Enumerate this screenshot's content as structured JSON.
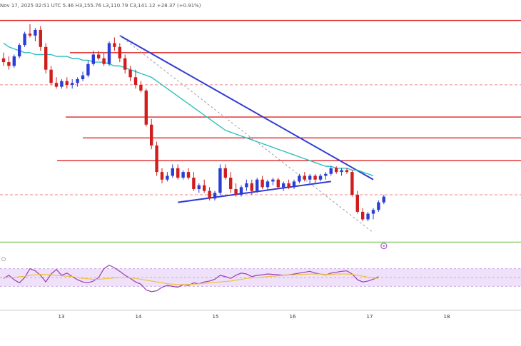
{
  "header": {
    "ohlc_line": "Nov 17, 2025 02:51 UTC    5.46  H3,155.76  L3,110.79  C3,141.12  +28.37 (+0.91%)"
  },
  "colors": {
    "up": "#2a3ed6",
    "down": "#d11d1d",
    "ma": "#2fbfc1",
    "trend": "#2f3cd4",
    "resistance": "#e02424",
    "support": "#7cc95a",
    "rsi_fill": "#e8d4f7",
    "rsi_band": "#c9a6e8",
    "rsi_line": "#9a3db6",
    "rsi_ma": "#f0c030"
  },
  "chart_data": {
    "type": "candlestick",
    "x_axis_ticks": [
      "13",
      "14",
      "15",
      "16",
      "17",
      "18"
    ],
    "y_range": [
      0,
      100
    ],
    "candles": [
      {
        "o": 76,
        "h": 79,
        "l": 72,
        "c": 74
      },
      {
        "o": 74,
        "h": 77,
        "l": 70,
        "c": 72
      },
      {
        "o": 72,
        "h": 78,
        "l": 71,
        "c": 77
      },
      {
        "o": 77,
        "h": 84,
        "l": 76,
        "c": 83
      },
      {
        "o": 83,
        "h": 90,
        "l": 82,
        "c": 89
      },
      {
        "o": 89,
        "h": 94,
        "l": 87,
        "c": 88
      },
      {
        "o": 88,
        "h": 92,
        "l": 85,
        "c": 91
      },
      {
        "o": 91,
        "h": 93,
        "l": 80,
        "c": 82
      },
      {
        "o": 82,
        "h": 84,
        "l": 68,
        "c": 70
      },
      {
        "o": 70,
        "h": 72,
        "l": 62,
        "c": 63
      },
      {
        "o": 63,
        "h": 66,
        "l": 60,
        "c": 61
      },
      {
        "o": 61,
        "h": 65,
        "l": 60,
        "c": 64
      },
      {
        "o": 64,
        "h": 66,
        "l": 60,
        "c": 62
      },
      {
        "o": 62,
        "h": 65,
        "l": 60,
        "c": 63
      },
      {
        "o": 63,
        "h": 66,
        "l": 61,
        "c": 65
      },
      {
        "o": 65,
        "h": 69,
        "l": 64,
        "c": 67
      },
      {
        "o": 67,
        "h": 75,
        "l": 66,
        "c": 73
      },
      {
        "o": 73,
        "h": 80,
        "l": 72,
        "c": 78
      },
      {
        "o": 78,
        "h": 80,
        "l": 75,
        "c": 76
      },
      {
        "o": 76,
        "h": 79,
        "l": 72,
        "c": 73
      },
      {
        "o": 73,
        "h": 85,
        "l": 72,
        "c": 84
      },
      {
        "o": 84,
        "h": 87,
        "l": 80,
        "c": 82
      },
      {
        "o": 82,
        "h": 84,
        "l": 74,
        "c": 76
      },
      {
        "o": 76,
        "h": 78,
        "l": 68,
        "c": 70
      },
      {
        "o": 70,
        "h": 72,
        "l": 64,
        "c": 66
      },
      {
        "o": 66,
        "h": 70,
        "l": 60,
        "c": 62
      },
      {
        "o": 62,
        "h": 64,
        "l": 58,
        "c": 59
      },
      {
        "o": 59,
        "h": 60,
        "l": 40,
        "c": 41
      },
      {
        "o": 41,
        "h": 44,
        "l": 28,
        "c": 30
      },
      {
        "o": 30,
        "h": 32,
        "l": 14,
        "c": 16
      },
      {
        "o": 16,
        "h": 18,
        "l": 10,
        "c": 12
      },
      {
        "o": 12,
        "h": 16,
        "l": 11,
        "c": 14
      },
      {
        "o": 14,
        "h": 20,
        "l": 13,
        "c": 18
      },
      {
        "o": 18,
        "h": 20,
        "l": 12,
        "c": 13
      },
      {
        "o": 13,
        "h": 17,
        "l": 12,
        "c": 16
      },
      {
        "o": 16,
        "h": 18,
        "l": 12,
        "c": 13
      },
      {
        "o": 13,
        "h": 16,
        "l": 6,
        "c": 7
      },
      {
        "o": 7,
        "h": 10,
        "l": 5,
        "c": 9
      },
      {
        "o": 9,
        "h": 12,
        "l": 5,
        "c": 6
      },
      {
        "o": 6,
        "h": 8,
        "l": 1,
        "c": 2
      },
      {
        "o": 2,
        "h": 6,
        "l": 1,
        "c": 5
      },
      {
        "o": 5,
        "h": 20,
        "l": 4,
        "c": 18
      },
      {
        "o": 18,
        "h": 20,
        "l": 12,
        "c": 13
      },
      {
        "o": 13,
        "h": 16,
        "l": 5,
        "c": 7
      },
      {
        "o": 7,
        "h": 10,
        "l": 3,
        "c": 4
      },
      {
        "o": 4,
        "h": 9,
        "l": 3,
        "c": 8
      },
      {
        "o": 8,
        "h": 12,
        "l": 6,
        "c": 10
      },
      {
        "o": 10,
        "h": 12,
        "l": 4,
        "c": 6
      },
      {
        "o": 6,
        "h": 13,
        "l": 5,
        "c": 12
      },
      {
        "o": 12,
        "h": 14,
        "l": 7,
        "c": 8
      },
      {
        "o": 8,
        "h": 12,
        "l": 6,
        "c": 11
      },
      {
        "o": 11,
        "h": 13,
        "l": 9,
        "c": 12
      },
      {
        "o": 12,
        "h": 13,
        "l": 7,
        "c": 8
      },
      {
        "o": 8,
        "h": 11,
        "l": 6,
        "c": 10
      },
      {
        "o": 10,
        "h": 12,
        "l": 7,
        "c": 8
      },
      {
        "o": 8,
        "h": 12,
        "l": 7,
        "c": 11
      },
      {
        "o": 11,
        "h": 15,
        "l": 10,
        "c": 14
      },
      {
        "o": 14,
        "h": 16,
        "l": 11,
        "c": 12
      },
      {
        "o": 12,
        "h": 15,
        "l": 10,
        "c": 14
      },
      {
        "o": 14,
        "h": 15,
        "l": 10,
        "c": 12
      },
      {
        "o": 12,
        "h": 15,
        "l": 11,
        "c": 14
      },
      {
        "o": 14,
        "h": 16,
        "l": 12,
        "c": 15
      },
      {
        "o": 15,
        "h": 19,
        "l": 14,
        "c": 18
      },
      {
        "o": 18,
        "h": 19,
        "l": 15,
        "c": 16
      },
      {
        "o": 16,
        "h": 18,
        "l": 14,
        "c": 17
      },
      {
        "o": 17,
        "h": 18,
        "l": 15,
        "c": 16
      },
      {
        "o": 16,
        "h": 17,
        "l": 3,
        "c": 4
      },
      {
        "o": 4,
        "h": 6,
        "l": -6,
        "c": -5
      },
      {
        "o": -5,
        "h": -3,
        "l": -10,
        "c": -9
      },
      {
        "o": -9,
        "h": -5,
        "l": -10,
        "c": -6
      },
      {
        "o": -6,
        "h": -3,
        "l": -9,
        "c": -4
      },
      {
        "o": -4,
        "h": 1,
        "l": -5,
        "c": 0
      },
      {
        "o": 0,
        "h": 4,
        "l": -1,
        "c": 3
      }
    ],
    "moving_average": [
      84,
      82,
      81,
      80,
      79,
      79,
      78,
      78,
      78,
      78,
      77,
      77,
      77,
      76,
      76,
      75,
      75,
      74,
      74,
      74,
      73,
      72,
      72,
      71,
      70,
      69,
      68,
      67,
      66,
      64,
      62,
      60,
      58,
      56,
      54,
      52,
      50,
      48,
      46,
      44,
      42,
      40,
      38,
      37,
      36,
      35,
      34,
      33,
      32,
      31,
      30,
      29,
      28,
      27,
      26,
      25,
      24,
      23,
      22,
      21,
      20,
      19,
      19,
      18,
      18,
      18,
      17,
      17,
      16,
      15,
      14
    ],
    "horizontal_levels": [
      {
        "price": 96,
        "kind": "resistance"
      },
      {
        "price": 79,
        "kind": "resistance"
      },
      {
        "price": 62,
        "kind": "dashed-resistance"
      },
      {
        "price": 45,
        "kind": "resistance"
      },
      {
        "price": 34,
        "kind": "resistance"
      },
      {
        "price": 22,
        "kind": "resistance"
      },
      {
        "price": 4,
        "kind": "dashed-resistance"
      },
      {
        "price": -21,
        "kind": "support"
      }
    ],
    "trendlines": [
      {
        "from": {
          "i": 22,
          "p": 88
        },
        "to": {
          "i": 70,
          "p": 12
        },
        "style": "solid"
      },
      {
        "from": {
          "i": 33,
          "p": 0
        },
        "to": {
          "i": 62,
          "p": 11
        },
        "style": "solid"
      },
      {
        "from": {
          "i": 22,
          "p": 88
        },
        "to": {
          "i": 70,
          "p": -16
        },
        "style": "dashed"
      }
    ],
    "rsi": {
      "values": [
        48,
        55,
        45,
        38,
        50,
        70,
        65,
        55,
        40,
        58,
        68,
        55,
        60,
        52,
        45,
        40,
        38,
        42,
        50,
        70,
        78,
        72,
        64,
        55,
        48,
        40,
        35,
        22,
        18,
        20,
        28,
        32,
        30,
        28,
        34,
        32,
        38,
        36,
        40,
        42,
        46,
        55,
        52,
        48,
        55,
        60,
        58,
        52,
        55,
        56,
        58,
        57,
        56,
        55,
        56,
        58,
        60,
        62,
        64,
        60,
        58,
        56,
        60,
        62,
        64,
        65,
        58,
        45,
        40,
        42,
        46,
        52
      ],
      "ma": [
        50,
        50,
        50,
        52,
        53,
        55,
        56,
        57,
        57,
        56,
        55,
        54,
        53,
        52,
        50,
        48,
        47,
        46,
        46,
        47,
        48,
        49,
        50,
        50,
        49,
        48,
        46,
        44,
        42,
        40,
        38,
        36,
        35,
        34,
        34,
        34,
        35,
        36,
        37,
        38,
        39,
        40,
        41,
        42,
        44,
        46,
        48,
        49,
        50,
        51,
        52,
        53,
        54,
        55,
        56,
        56,
        57,
        57,
        58,
        58,
        58,
        57,
        57,
        58,
        58,
        58,
        57,
        55,
        53,
        51,
        49,
        48
      ],
      "levels": [
        70,
        50,
        30
      ]
    }
  }
}
